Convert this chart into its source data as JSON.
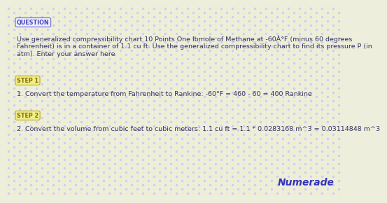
{
  "background_color": "#eeeedd",
  "dot_color_1": "#ccccee",
  "dot_color_2": "#eeeebb",
  "question_label": "QUESTION",
  "question_label_color": "#4444bb",
  "question_label_bg": "#eeeeff",
  "question_label_border": "#6666cc",
  "question_text_line1": "Use generalized compressibility chart 10 Points One lbmole of Methane at -60Â°F (minus 60 degrees",
  "question_text_line2": "Fahrenheit) is in a container of 1.1 cu ft. Use the generalized compressibility chart to find its pressure P (in",
  "question_text_line3": "atm). Enter your answer here",
  "step1_label": "STEP 1",
  "step1_label_color": "#886600",
  "step1_label_bg": "#eeee88",
  "step1_label_border": "#bbaa22",
  "step1_text": "1. Convert the temperature from Fahrenheit to Rankine: -60°F = 460 - 60 = 400 Rankine",
  "step2_label": "STEP 2",
  "step2_label_color": "#886600",
  "step2_label_bg": "#eeee88",
  "step2_label_border": "#bbaa22",
  "step2_text": "2. Convert the volume from cubic feet to cubic meters: 1.1 cu ft = 1.1 * 0.0283168 m^3 = 0.03114848 m^3",
  "numerade_text": "Numerade",
  "numerade_color": "#3333bb",
  "text_color": "#333366",
  "font_size_body": 6.8,
  "font_size_label": 5.8,
  "font_size_numerade": 10.0
}
